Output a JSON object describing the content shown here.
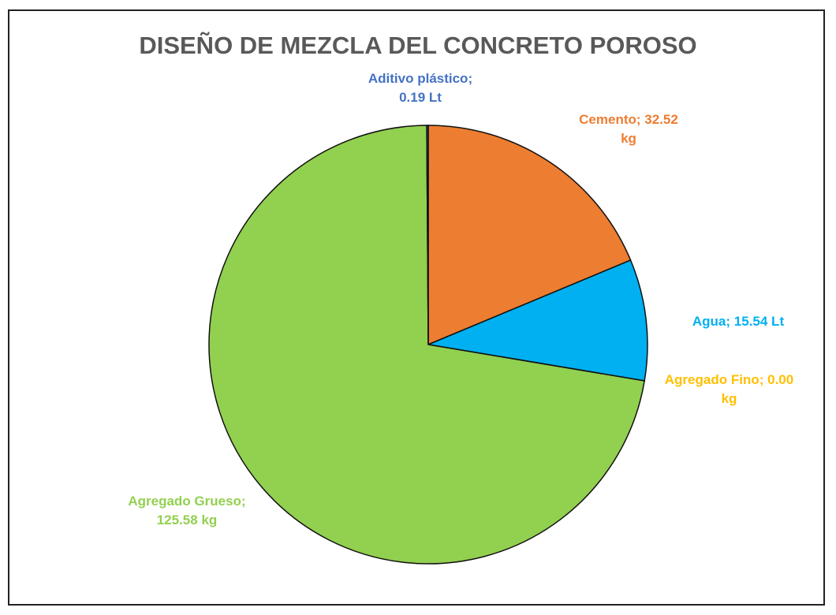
{
  "chart_data": {
    "type": "pie",
    "title": "DISEÑO DE MEZCLA DEL CONCRETO POROSO",
    "categories": [
      "Cemento",
      "Agua",
      "Agregado Fino",
      "Agregado Grueso",
      "Aditivo plástico"
    ],
    "values": [
      32.52,
      15.54,
      0,
      125.58,
      0.19
    ],
    "value_labels": [
      "32.52 kg",
      "15.54 Lt",
      "0.00 kg",
      "125.58 kg",
      "0.19 Lt"
    ],
    "label_separator": ";",
    "colors": [
      "#ED7D31",
      "#00B0F0",
      "#FFC000",
      "#92D050",
      "#4472C4"
    ]
  }
}
